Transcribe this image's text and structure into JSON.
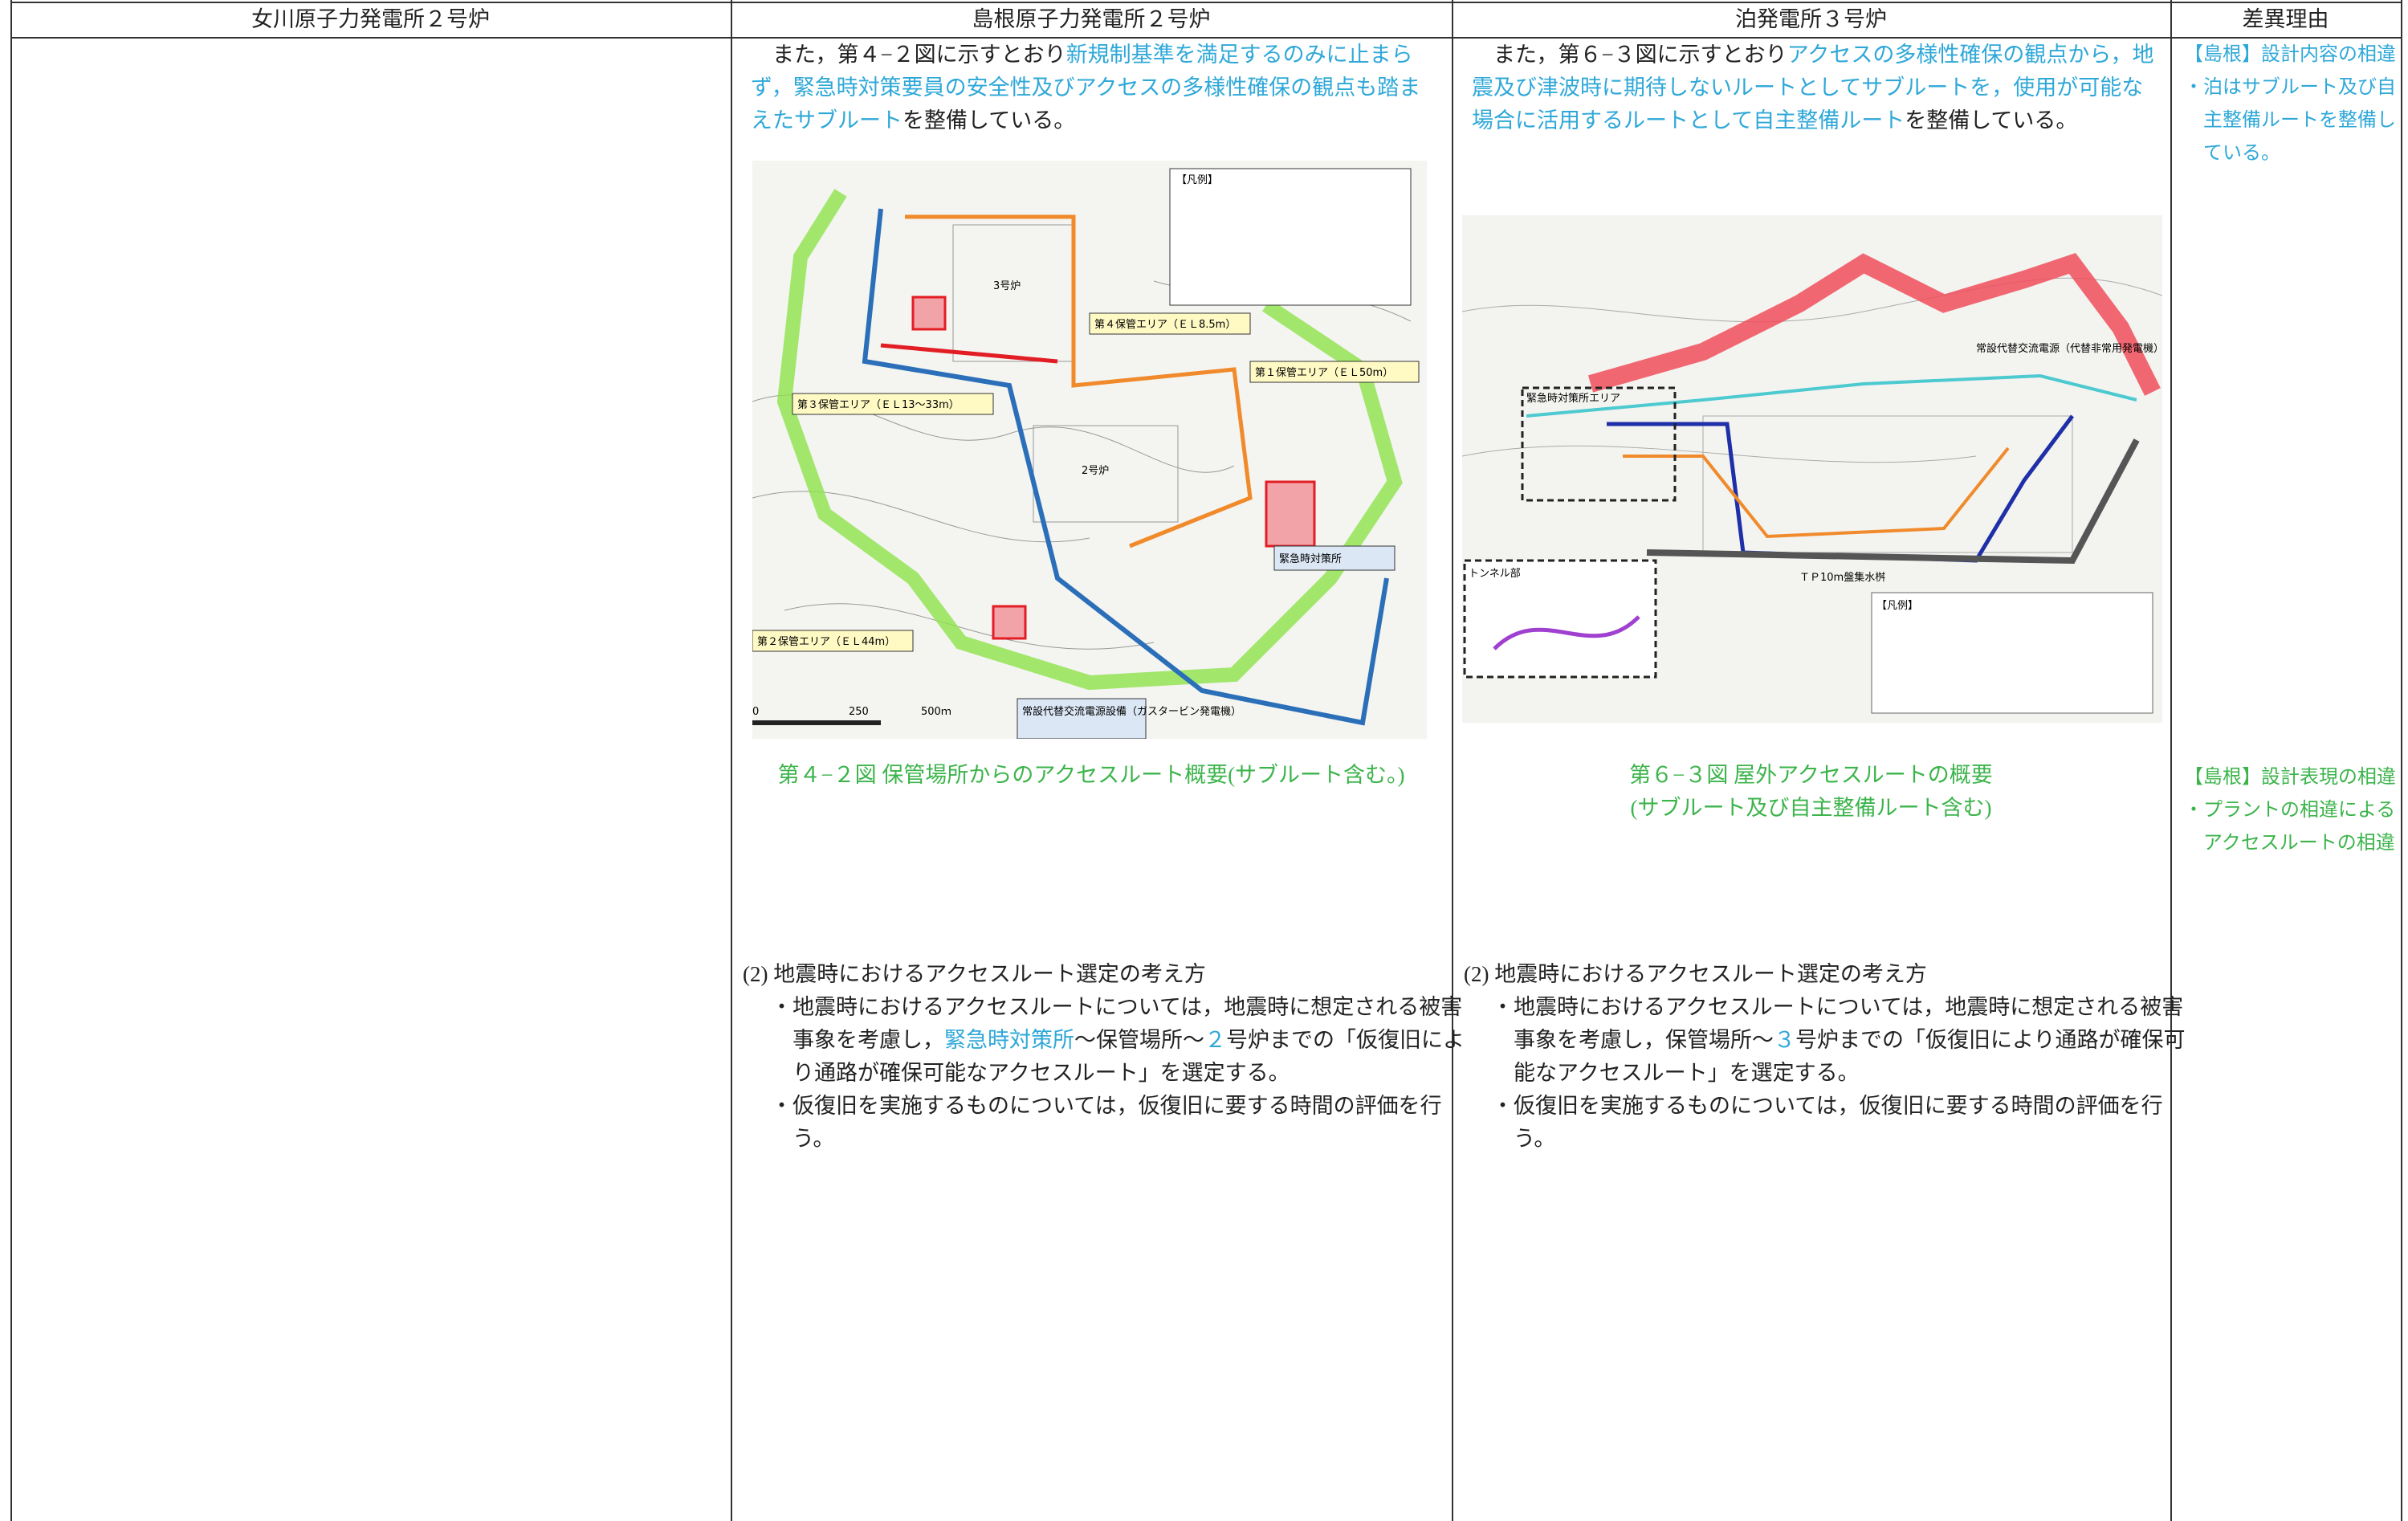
{
  "header": {
    "columns": [
      "女川原子力発電所２号炉",
      "島根原子力発電所２号炉",
      "泊発電所３号炉",
      "差異理由"
    ]
  },
  "shimane": {
    "intro": [
      {
        "text": "また，第４−２図に示すとおり"
      },
      {
        "text": "新規制基準を満足するのみに止まらず，緊急時対策要員の安全性及びアクセスの多様性確保の観点も踏まえたサブルート",
        "color": "#2fa8d8"
      },
      {
        "text": "を整備している。"
      }
    ],
    "figure": {
      "labels": [
        "【凡例】",
        "3号炉",
        "2号炉",
        "第４保管エリア（ＥＬ8.5m）",
        "第１保管エリア（ＥＬ50m）",
        "第３保管エリア（ＥＬ13〜33m）",
        "第２保管エリア（ＥＬ44m）",
        "緊急時対策所",
        "常設代替交流電源設備（ガスタービン発電機）",
        "0",
        "250",
        "500ｍ"
      ],
      "caption": "第４−２図 保管場所からのアクセスルート概要(サブルート含む。)",
      "caption_color": "#3cb44b"
    },
    "section": {
      "heading": "(2) 地震時におけるアクセスルート選定の考え方",
      "bullets": [
        [
          {
            "text": "・地震時におけるアクセスルートについては，地震時に想定される被害事象を考慮し，"
          },
          {
            "text": "緊急時対策所",
            "color": "#2fa8d8"
          },
          {
            "text": "〜保管場所〜"
          },
          {
            "text": "２",
            "color": "#2fa8d8"
          },
          {
            "text": "号炉までの「仮復旧により通路が確保可能なアクセスルート」を選定する。"
          }
        ],
        [
          {
            "text": "・仮復旧を実施するものについては，仮復旧に要する時間の評価を行う。"
          }
        ]
      ]
    }
  },
  "tomari": {
    "intro": [
      {
        "text": "また，第６−３図に示すとおり"
      },
      {
        "text": "アクセスの多様性確保の観点から，地震及び津波時に期待しないルートとしてサブルートを，使用が可能な場合に活用するルートとして自主整備ルート",
        "color": "#2fa8d8"
      },
      {
        "text": "を整備している。"
      }
    ],
    "figure": {
      "labels": [
        "緊急時対策所エリア",
        "トンネル部",
        "ＴＰ10m盤集水桝",
        "常設代替交流電源（代替非常用発電機）",
        "【凡例】"
      ],
      "caption": [
        "第６−３図 屋外アクセスルートの概要",
        "(サブルート及び自主整備ルート含む)"
      ],
      "caption_color": "#3cb44b"
    },
    "section": {
      "heading": "(2) 地震時におけるアクセスルート選定の考え方",
      "bullets": [
        [
          {
            "text": "・地震時におけるアクセスルートについては，地震時に想定される被害事象を考慮し，保管場所〜"
          },
          {
            "text": "３",
            "color": "#2fa8d8"
          },
          {
            "text": "号炉までの「仮復旧により通路が確保可能なアクセスルート」を選定する。"
          }
        ],
        [
          {
            "text": "・仮復旧を実施するものについては，仮復旧に要する時間の評価を行う。"
          }
        ]
      ]
    }
  },
  "reasons": [
    {
      "title": "【島根】設計内容の相違",
      "body": "・泊はサブルート及び自主整備ルートを整備している。",
      "color": "#2fa8d8"
    },
    {
      "title": "【島根】設計表現の相違",
      "body": "・プラントの相違によるアクセスルートの相違",
      "color": "#3cb44b"
    }
  ]
}
